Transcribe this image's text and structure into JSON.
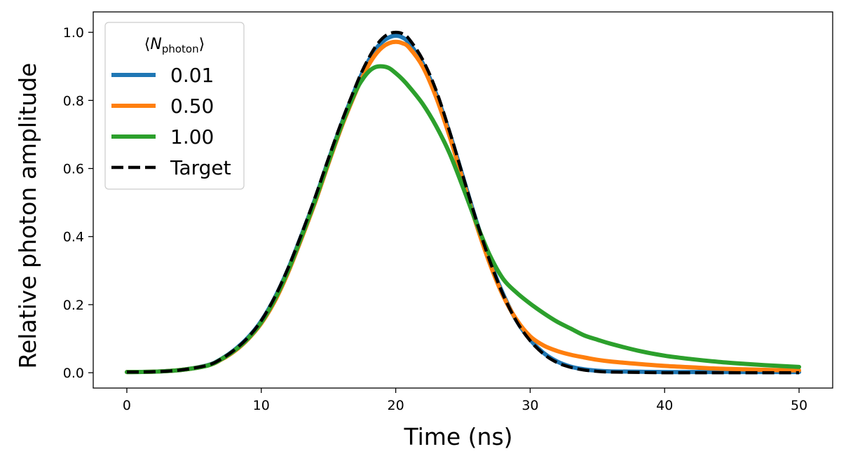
{
  "chart_data": {
    "type": "line",
    "title": "",
    "xlabel": "Time (ns)",
    "ylabel": "Relative photon amplitude",
    "xlim": [
      -2.5,
      52.5
    ],
    "ylim": [
      -0.045,
      1.06
    ],
    "xticks": [
      0,
      10,
      20,
      30,
      40,
      50
    ],
    "xtick_labels": [
      "0",
      "10",
      "20",
      "30",
      "40",
      "50"
    ],
    "yticks": [
      0.0,
      0.2,
      0.4,
      0.6,
      0.8,
      1.0
    ],
    "ytick_labels": [
      "0.0",
      "0.2",
      "0.4",
      "0.6",
      "0.8",
      "1.0"
    ],
    "grid": false,
    "legend": {
      "location": "upper-left",
      "title_prefix": "⟨",
      "title_symbol": "N",
      "title_subscript": "photon",
      "title_suffix": "⟩"
    },
    "x": [
      0,
      2,
      4,
      6,
      7,
      8,
      9,
      10,
      11,
      12,
      13,
      14,
      15,
      16,
      17,
      17.5,
      18,
      18.5,
      19,
      19.5,
      20,
      20.5,
      21,
      22,
      23,
      24,
      25,
      26,
      27,
      28,
      29,
      30,
      31,
      32,
      33,
      34,
      35,
      36,
      38,
      40,
      42,
      44,
      46,
      48,
      50
    ],
    "series": [
      {
        "name": "0.01",
        "color": "#1f77b4",
        "dashed": false,
        "values": [
          0.002,
          0.003,
          0.008,
          0.022,
          0.04,
          0.067,
          0.103,
          0.152,
          0.22,
          0.305,
          0.405,
          0.51,
          0.625,
          0.735,
          0.835,
          0.88,
          0.918,
          0.95,
          0.972,
          0.985,
          0.99,
          0.985,
          0.968,
          0.91,
          0.82,
          0.705,
          0.575,
          0.445,
          0.328,
          0.23,
          0.152,
          0.097,
          0.058,
          0.033,
          0.018,
          0.01,
          0.006,
          0.004,
          0.003,
          0.002,
          0.002,
          0.002,
          0.002,
          0.002,
          0.002
        ]
      },
      {
        "name": "0.50",
        "color": "#ff7f0e",
        "dashed": false,
        "values": [
          0.002,
          0.003,
          0.008,
          0.021,
          0.038,
          0.063,
          0.098,
          0.145,
          0.21,
          0.295,
          0.395,
          0.5,
          0.615,
          0.725,
          0.822,
          0.866,
          0.905,
          0.935,
          0.956,
          0.968,
          0.972,
          0.968,
          0.955,
          0.9,
          0.81,
          0.695,
          0.565,
          0.435,
          0.32,
          0.225,
          0.155,
          0.107,
          0.08,
          0.064,
          0.053,
          0.045,
          0.038,
          0.033,
          0.026,
          0.02,
          0.016,
          0.012,
          0.01,
          0.008,
          0.007
        ]
      },
      {
        "name": "1.00",
        "color": "#2ca02c",
        "dashed": false,
        "values": [
          0.002,
          0.003,
          0.008,
          0.021,
          0.039,
          0.065,
          0.1,
          0.148,
          0.215,
          0.3,
          0.4,
          0.505,
          0.62,
          0.73,
          0.825,
          0.86,
          0.885,
          0.898,
          0.9,
          0.895,
          0.88,
          0.862,
          0.84,
          0.79,
          0.725,
          0.645,
          0.545,
          0.44,
          0.345,
          0.275,
          0.235,
          0.203,
          0.175,
          0.15,
          0.13,
          0.11,
          0.097,
          0.085,
          0.065,
          0.05,
          0.04,
          0.032,
          0.026,
          0.021,
          0.017
        ]
      },
      {
        "name": "Target",
        "color": "#000000",
        "dashed": true,
        "values": [
          0.002,
          0.003,
          0.008,
          0.022,
          0.04,
          0.067,
          0.103,
          0.153,
          0.222,
          0.308,
          0.408,
          0.515,
          0.63,
          0.74,
          0.84,
          0.886,
          0.925,
          0.958,
          0.982,
          0.996,
          1.0,
          0.996,
          0.98,
          0.92,
          0.83,
          0.71,
          0.578,
          0.447,
          0.328,
          0.228,
          0.15,
          0.094,
          0.055,
          0.03,
          0.016,
          0.008,
          0.004,
          0.002,
          0.001,
          0.0,
          0.0,
          0.0,
          0.0,
          0.0,
          0.0
        ]
      }
    ]
  }
}
